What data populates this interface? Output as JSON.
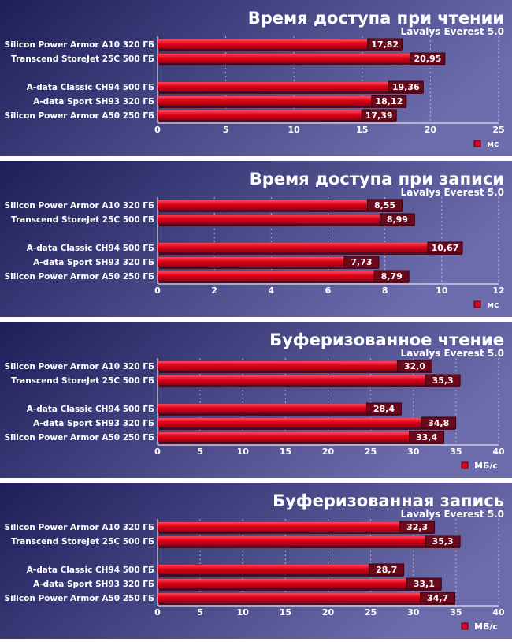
{
  "chart_data": [
    {
      "type": "bar",
      "orientation": "horizontal",
      "title": "Время доступа при чтении",
      "subtitle": "Lavalys Everest 5.0",
      "categories": [
        "Silicon Power Armor A10 320 ГБ",
        "Transcend StoreJet 25C 500 ГБ",
        "A-data Classic CH94 500 ГБ",
        "A-data Sport SH93 320 ГБ",
        "Silicon Power Armor A50 250 ГБ"
      ],
      "values": [
        17.82,
        20.95,
        19.36,
        18.12,
        17.39
      ],
      "value_labels": [
        "17,82",
        "20,95",
        "19,36",
        "18,12",
        "17,39"
      ],
      "xlim": [
        0,
        25
      ],
      "ticks": [
        0,
        5,
        10,
        15,
        20,
        25
      ],
      "unit_legend": "мс",
      "grid": true,
      "legend_position": "bottom-right"
    },
    {
      "type": "bar",
      "orientation": "horizontal",
      "title": "Время доступа при записи",
      "subtitle": "Lavalys Everest 5.0",
      "categories": [
        "Silicon Power Armor A10 320 ГБ",
        "Transcend StoreJet 25C 500 ГБ",
        "A-data Classic CH94 500 ГБ",
        "A-data Sport SH93 320 ГБ",
        "Silicon Power Armor A50 250 ГБ"
      ],
      "values": [
        8.55,
        8.99,
        10.67,
        7.73,
        8.79
      ],
      "value_labels": [
        "8,55",
        "8,99",
        "10,67",
        "7,73",
        "8,79"
      ],
      "xlim": [
        0,
        12
      ],
      "ticks": [
        0,
        2,
        4,
        6,
        8,
        10,
        12
      ],
      "unit_legend": "мс",
      "grid": true,
      "legend_position": "bottom-right"
    },
    {
      "type": "bar",
      "orientation": "horizontal",
      "title": "Буферизованное чтение",
      "subtitle": "Lavalys Everest 5.0",
      "categories": [
        "Silicon Power Armor A10 320 ГБ",
        "Transcend StoreJet 25C 500 ГБ",
        "A-data Classic CH94 500 ГБ",
        "A-data Sport SH93 320 ГБ",
        "Silicon Power Armor A50 250 ГБ"
      ],
      "values": [
        32.0,
        35.3,
        28.4,
        34.8,
        33.4
      ],
      "value_labels": [
        "32,0",
        "35,3",
        "28,4",
        "34,8",
        "33,4"
      ],
      "xlim": [
        0,
        40
      ],
      "ticks": [
        0,
        5,
        10,
        15,
        20,
        25,
        30,
        35,
        40
      ],
      "unit_legend": "МБ/с",
      "grid": true,
      "legend_position": "bottom-right"
    },
    {
      "type": "bar",
      "orientation": "horizontal",
      "title": "Буферизованная запись",
      "subtitle": "Lavalys Everest 5.0",
      "categories": [
        "Silicon Power Armor A10 320 ГБ",
        "Transcend StoreJet 25C 500 ГБ",
        "A-data Classic CH94 500 ГБ",
        "A-data Sport SH93 320 ГБ",
        "Silicon Power Armor A50 250 ГБ"
      ],
      "values": [
        32.3,
        35.3,
        28.7,
        33.1,
        34.7
      ],
      "value_labels": [
        "32,3",
        "35,3",
        "28,7",
        "33,1",
        "34,7"
      ],
      "xlim": [
        0,
        40
      ],
      "ticks": [
        0,
        5,
        10,
        15,
        20,
        25,
        30,
        35,
        40
      ],
      "unit_legend": "МБ/с",
      "grid": true,
      "legend_position": "bottom-right"
    }
  ],
  "colors": {
    "background_dark": "#1e1e5a",
    "background_light": "#6c6cac",
    "bar": "#e0001a",
    "bar_highlight": "#ff4a5a",
    "bar_shadow": "#4a0010",
    "label_bg": "#6a0a1c",
    "text": "#ffffff"
  }
}
